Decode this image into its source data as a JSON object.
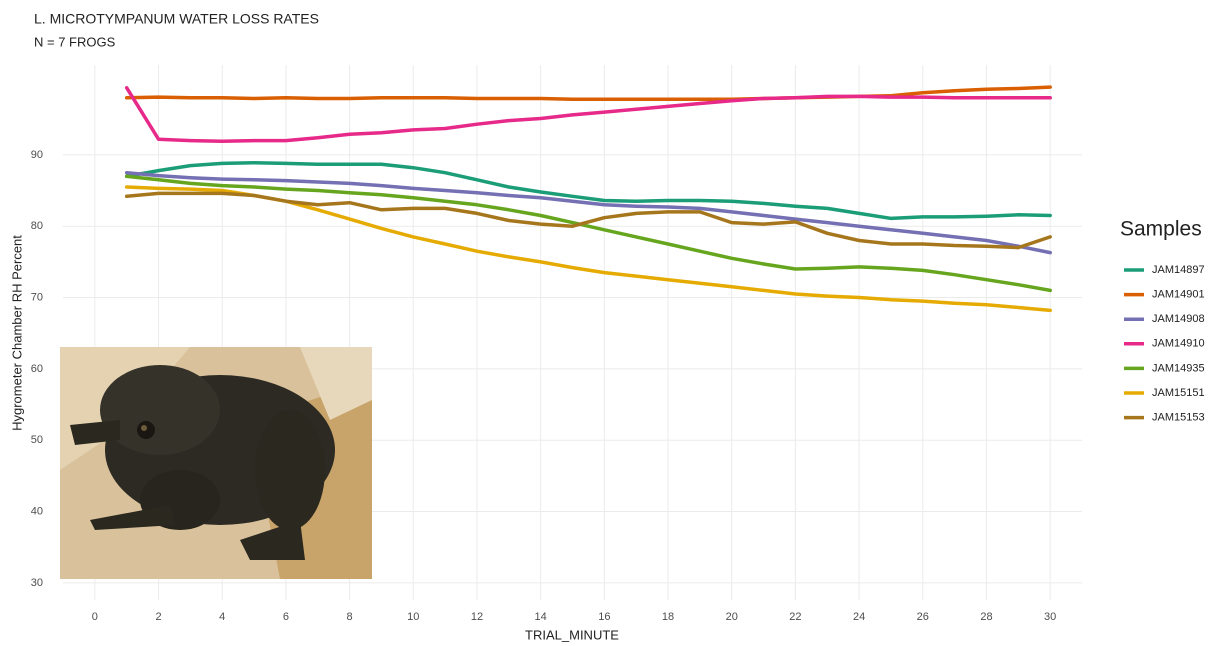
{
  "chart_data": {
    "type": "line",
    "title": "L. MICROTYMPANUM WATER LOSS RATES",
    "subtitle": "N = 7 FROGS",
    "x_label": "TRIAL_MINUTE",
    "y_label": "Hygrometer Chamber RH Percent",
    "legend_title": "Samples",
    "legend": "right",
    "grid": true,
    "x": [
      1,
      2,
      3,
      4,
      5,
      6,
      7,
      8,
      9,
      10,
      11,
      12,
      13,
      14,
      15,
      16,
      17,
      18,
      19,
      20,
      21,
      22,
      23,
      24,
      25,
      26,
      27,
      28,
      29,
      30
    ],
    "xlim": [
      -1,
      31
    ],
    "xticks": [
      0,
      2,
      4,
      6,
      8,
      10,
      12,
      14,
      16,
      18,
      20,
      22,
      24,
      26,
      28,
      30
    ],
    "ylim": [
      27.6,
      102.6
    ],
    "yticks": [
      30,
      40,
      50,
      60,
      70,
      80,
      90
    ],
    "series": [
      {
        "name": "JAM14897",
        "color": "#1b9e77",
        "values": [
          87,
          87.8,
          88.5,
          88.8,
          88.9,
          88.8,
          88.7,
          88.7,
          88.7,
          88.2,
          87.5,
          86.5,
          85.5,
          84.8,
          84.2,
          83.6,
          83.5,
          83.6,
          83.6,
          83.5,
          83.2,
          82.8,
          82.5,
          81.8,
          81.1,
          81.3,
          81.3,
          81.4,
          81.6,
          81.5
        ]
      },
      {
        "name": "JAM14901",
        "color": "#d95f02",
        "values": [
          98,
          98.1,
          98,
          98,
          97.9,
          98,
          97.9,
          97.9,
          98,
          98,
          98,
          97.9,
          97.9,
          97.9,
          97.8,
          97.8,
          97.8,
          97.8,
          97.8,
          97.8,
          97.9,
          98,
          98.1,
          98.2,
          98.3,
          98.7,
          99,
          99.2,
          99.3,
          99.5
        ]
      },
      {
        "name": "JAM14908",
        "color": "#7570b3",
        "values": [
          87.5,
          87.1,
          86.8,
          86.6,
          86.5,
          86.4,
          86.2,
          86,
          85.7,
          85.3,
          85,
          84.7,
          84.3,
          84,
          83.5,
          83,
          82.8,
          82.7,
          82.5,
          82,
          81.5,
          81,
          80.5,
          80,
          79.5,
          79,
          78.5,
          78,
          77.2,
          76.3
        ]
      },
      {
        "name": "JAM14910",
        "color": "#e7298a",
        "values": [
          99.4,
          92.2,
          92,
          91.9,
          92,
          92,
          92.4,
          92.9,
          93.1,
          93.5,
          93.7,
          94.3,
          94.8,
          95.1,
          95.6,
          96,
          96.4,
          96.8,
          97.2,
          97.6,
          97.9,
          98,
          98.2,
          98.2,
          98.1,
          98.1,
          98,
          98,
          98,
          98
        ]
      },
      {
        "name": "JAM14935",
        "color": "#66a61e",
        "values": [
          87,
          86.5,
          86,
          85.7,
          85.5,
          85.2,
          85,
          84.7,
          84.4,
          84,
          83.5,
          83,
          82.3,
          81.5,
          80.5,
          79.5,
          78.5,
          77.5,
          76.5,
          75.5,
          74.7,
          74,
          74.1,
          74.3,
          74.1,
          73.8,
          73.2,
          72.5,
          71.8,
          71
        ]
      },
      {
        "name": "JAM15151",
        "color": "#e6ab02",
        "values": [
          85.5,
          85.3,
          85.2,
          85,
          84.3,
          83.5,
          82.3,
          81,
          79.7,
          78.5,
          77.5,
          76.5,
          75.7,
          75,
          74.2,
          73.5,
          73,
          72.5,
          72,
          71.5,
          71,
          70.5,
          70.2,
          70,
          69.7,
          69.5,
          69.2,
          69,
          68.6,
          68.2
        ]
      },
      {
        "name": "JAM15153",
        "color": "#a6761d",
        "values": [
          84.2,
          84.6,
          84.6,
          84.6,
          84.3,
          83.5,
          83,
          83.3,
          82.3,
          82.5,
          82.5,
          81.8,
          80.8,
          80.3,
          80,
          81.2,
          81.8,
          82,
          82,
          80.5,
          80.3,
          80.6,
          79,
          78,
          77.5,
          77.5,
          77.3,
          77.2,
          77,
          78.5
        ]
      }
    ]
  }
}
